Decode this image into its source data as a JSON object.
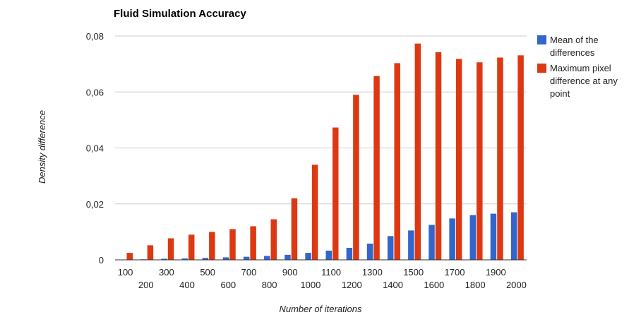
{
  "chart_data": {
    "type": "bar",
    "title": "Fluid Simulation Accuracy",
    "xlabel": "Number of iterations",
    "ylabel": "Density difference",
    "categories": [
      "100",
      "200",
      "300",
      "400",
      "500",
      "600",
      "700",
      "800",
      "900",
      "1000",
      "1100",
      "1200",
      "1300",
      "1400",
      "1500",
      "1600",
      "1700",
      "1800",
      "1900",
      "2000"
    ],
    "series": [
      {
        "name": "Mean of the differences",
        "color": "#3366cc",
        "values": [
          0.0001,
          0.0002,
          0.0004,
          0.0005,
          0.0007,
          0.0009,
          0.0011,
          0.0014,
          0.0018,
          0.0025,
          0.0033,
          0.0043,
          0.0058,
          0.0085,
          0.0105,
          0.0125,
          0.0148,
          0.016,
          0.0165,
          0.017
        ]
      },
      {
        "name": "Maximum pixel difference at any point",
        "color": "#dc3912",
        "values": [
          0.0025,
          0.0052,
          0.0077,
          0.009,
          0.01,
          0.011,
          0.012,
          0.0145,
          0.022,
          0.034,
          0.0473,
          0.059,
          0.0657,
          0.0703,
          0.0773,
          0.0742,
          0.0718,
          0.0706,
          0.0723,
          0.0731
        ]
      }
    ],
    "ylim": [
      0,
      0.08
    ],
    "yticks": [
      "0",
      "0,02",
      "0,04",
      "0,06",
      "0,08"
    ],
    "grid": true,
    "legend_position": "right"
  }
}
